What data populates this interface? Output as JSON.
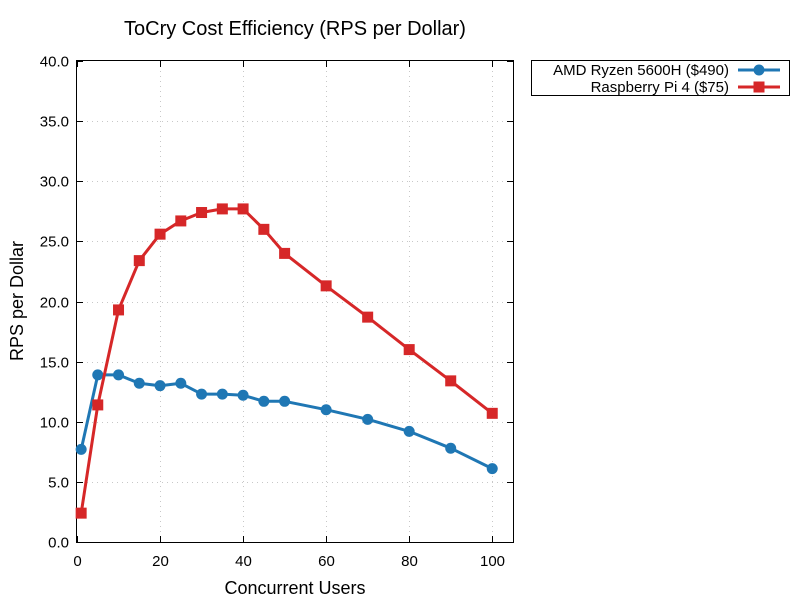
{
  "chart_data": {
    "type": "line",
    "title": "ToCry Cost Efficiency (RPS per Dollar)",
    "xlabel": "Concurrent Users",
    "ylabel": "RPS per Dollar",
    "xlim": [
      0,
      105
    ],
    "ylim": [
      0,
      40
    ],
    "xticks": [
      0,
      20,
      40,
      60,
      80,
      100
    ],
    "xtick_labels": [
      "0",
      "20",
      "40",
      "60",
      "80",
      "100"
    ],
    "yticks": [
      0,
      5,
      10,
      15,
      20,
      25,
      30,
      35,
      40
    ],
    "ytick_labels": [
      "0.0",
      "5.0",
      "10.0",
      "15.0",
      "20.0",
      "25.0",
      "30.0",
      "35.0",
      "40.0"
    ],
    "grid": true,
    "legend_position": "outside-top-right",
    "series": [
      {
        "name": "AMD Ryzen 5600H ($490)",
        "color": "#1f77b4",
        "marker": "circle",
        "x": [
          1,
          5,
          10,
          15,
          20,
          25,
          30,
          35,
          40,
          45,
          50,
          60,
          70,
          80,
          90,
          100
        ],
        "values": [
          7.7,
          13.9,
          13.9,
          13.2,
          13.0,
          13.2,
          12.3,
          12.3,
          12.2,
          11.7,
          11.7,
          11.0,
          10.2,
          9.2,
          7.8,
          6.1
        ]
      },
      {
        "name": "Raspberry Pi 4 ($75)",
        "color": "#d62728",
        "marker": "square",
        "x": [
          1,
          5,
          10,
          15,
          20,
          25,
          30,
          35,
          40,
          45,
          50,
          60,
          70,
          80,
          90,
          100
        ],
        "values": [
          2.4,
          11.4,
          19.3,
          23.4,
          25.6,
          26.7,
          27.4,
          27.7,
          27.7,
          26.0,
          24.0,
          21.3,
          18.7,
          16.0,
          13.4,
          10.7
        ]
      }
    ]
  }
}
